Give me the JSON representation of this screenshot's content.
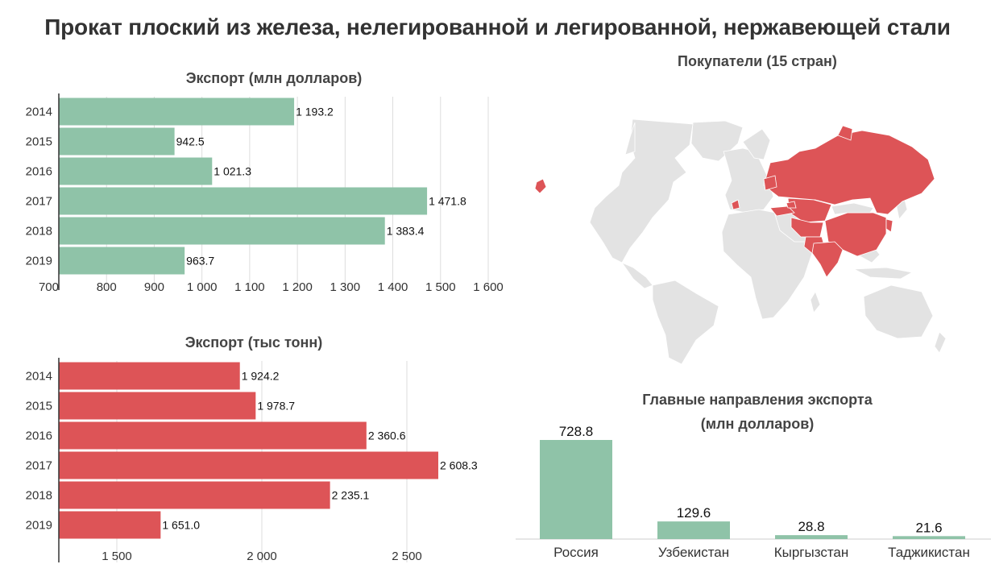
{
  "title": "Прокат плоский из железа, нелегированной и легированной, нержавеющей стали",
  "colors": {
    "green": "#8fc3a8",
    "red": "#dd5457",
    "map_land": "#e3e3e3",
    "grid": "#dddddd"
  },
  "chart_data": [
    {
      "type": "bar",
      "orientation": "horizontal",
      "title": "Экспорт (млн долларов)",
      "categories": [
        "2014",
        "2015",
        "2016",
        "2017",
        "2018",
        "2019"
      ],
      "values": [
        1193.2,
        942.5,
        1021.3,
        1471.8,
        1383.4,
        963.7
      ],
      "value_labels": [
        "1 193.2",
        "942.5",
        "1 021.3",
        "1 471.8",
        "1 383.4",
        "963.7"
      ],
      "xlim": [
        700,
        1600
      ],
      "ticks": [
        700,
        800,
        900,
        1000,
        1100,
        1200,
        1300,
        1400,
        1500,
        1600
      ],
      "tick_labels": [
        "700",
        "800",
        "900",
        "1 000",
        "1 100",
        "1 200",
        "1 300",
        "1 400",
        "1 500",
        "1 600"
      ],
      "color": "#8fc3a8",
      "grid": true
    },
    {
      "type": "bar",
      "orientation": "horizontal",
      "title": "Экспорт (тыс тонн)",
      "categories": [
        "2014",
        "2015",
        "2016",
        "2017",
        "2018",
        "2019"
      ],
      "values": [
        1924.2,
        1978.7,
        2360.6,
        2608.3,
        2235.1,
        1651.0
      ],
      "value_labels": [
        "1 924.2",
        "1 978.7",
        "2 360.6",
        "2 608.3",
        "2 235.1",
        "1 651.0"
      ],
      "xlim": [
        1300,
        2700
      ],
      "ticks": [
        1500,
        2000,
        2500
      ],
      "tick_labels": [
        "1 500",
        "2 000",
        "2 500"
      ],
      "color": "#dd5457",
      "grid": true
    },
    {
      "type": "bar",
      "orientation": "vertical",
      "title": "Главные направления экспорта",
      "subtitle": "(млн долларов)",
      "categories": [
        "Россия",
        "Узбекистан",
        "Кыргызстан",
        "Таджикистан"
      ],
      "values": [
        728.8,
        129.6,
        28.8,
        21.6
      ],
      "value_labels": [
        "728.8",
        "129.6",
        "28.8",
        "21.6"
      ],
      "ylim": [
        0,
        728.8
      ],
      "color": "#8fc3a8",
      "grid": false
    }
  ],
  "map": {
    "title": "Покупатели (15 стран)",
    "highlighted_color": "#dd5457",
    "base_color": "#e3e3e3"
  }
}
